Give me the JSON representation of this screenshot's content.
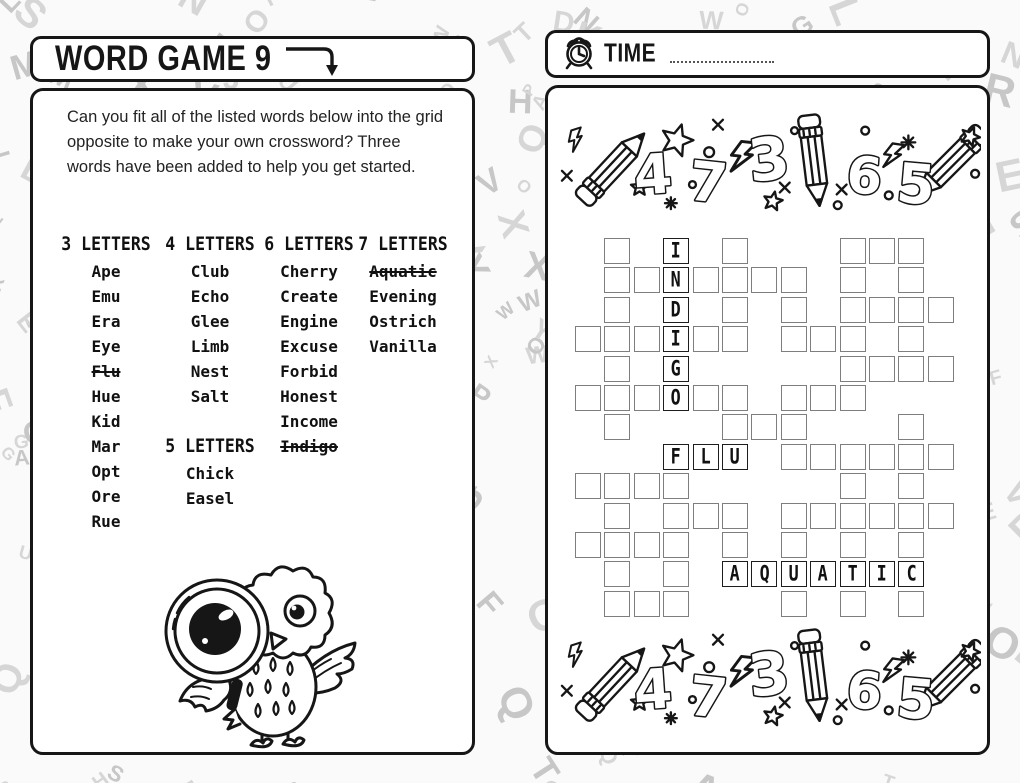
{
  "background": {
    "letters": "GRTBMAJXDLNPEUWKOSVZHYQF",
    "color": "#c7c7c7"
  },
  "left_page": {
    "title": "WORD GAME 9",
    "instructions": "Can you fit all of the listed words below into the grid opposite to make your own crossword? Three words have been added to help you get started.",
    "word_columns": [
      {
        "blocks": [
          {
            "header": "3 LETTERS",
            "words": [
              {
                "text": "Ape"
              },
              {
                "text": "Emu"
              },
              {
                "text": "Era"
              },
              {
                "text": "Eye"
              },
              {
                "text": "Flu",
                "struck": true
              },
              {
                "text": "Hue"
              },
              {
                "text": "Kid"
              },
              {
                "text": "Mar"
              },
              {
                "text": "Opt"
              },
              {
                "text": "Ore"
              },
              {
                "text": "Rue"
              }
            ]
          }
        ]
      },
      {
        "blocks": [
          {
            "header": "4 LETTERS",
            "words": [
              {
                "text": "Club"
              },
              {
                "text": "Echo"
              },
              {
                "text": "Glee"
              },
              {
                "text": "Limb"
              },
              {
                "text": "Nest"
              },
              {
                "text": "Salt"
              }
            ]
          },
          {
            "header": "5 LETTERS",
            "words": [
              {
                "text": "Chick"
              },
              {
                "text": "Easel"
              }
            ]
          }
        ]
      },
      {
        "blocks": [
          {
            "header": "6 LETTERS",
            "words": [
              {
                "text": "Cherry"
              },
              {
                "text": "Create"
              },
              {
                "text": "Engine"
              },
              {
                "text": "Excuse"
              },
              {
                "text": "Forbid"
              },
              {
                "text": "Honest"
              },
              {
                "text": "Income"
              },
              {
                "text": "Indigo",
                "struck": true
              }
            ]
          }
        ]
      },
      {
        "blocks": [
          {
            "header": "7 LETTERS",
            "words": [
              {
                "text": "Aquatic",
                "struck": true
              },
              {
                "text": "Evening"
              },
              {
                "text": "Ostrich"
              },
              {
                "text": "Vanilla"
              }
            ]
          }
        ]
      }
    ]
  },
  "right_page": {
    "time_label": "TIME",
    "time_value": "",
    "band_numbers": [
      "4",
      "7",
      "3",
      "6",
      "5"
    ],
    "grid": {
      "rows": [
        ".#.I.#...###.",
        ".##N####.#.#.",
        ".#.D.#.#.####",
        "###I##.###.#.",
        ".#.G.....####",
        "###O##.###...",
        ".#...###...#.",
        "...FLU.######",
        "####.....#.#.",
        ".#.###.######",
        "####.#.#.#.#.",
        ".#.#.AQUATIC.",
        ".###...#.#.#."
      ]
    }
  }
}
